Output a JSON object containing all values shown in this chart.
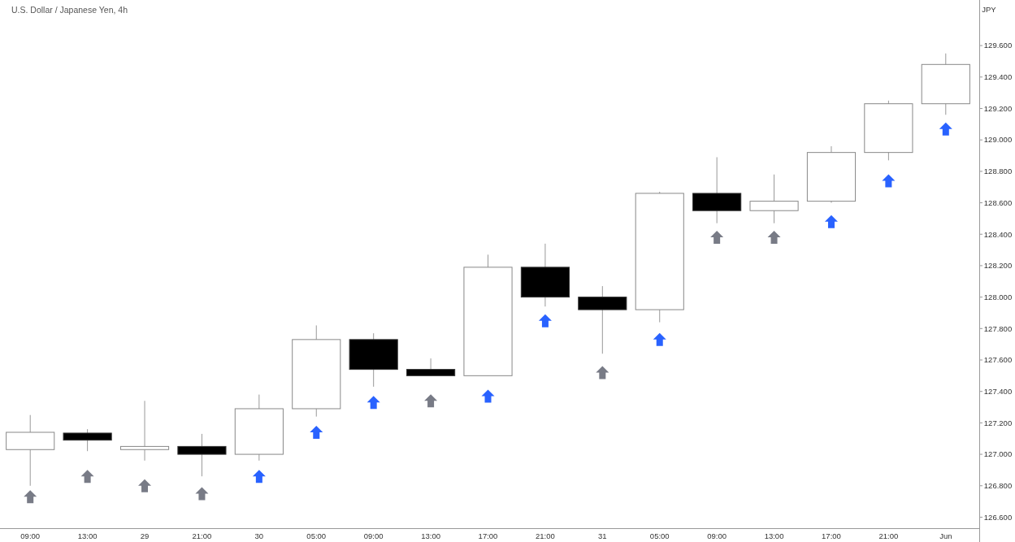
{
  "chart_data": {
    "type": "candlestick",
    "title": "U.S. Dollar / Japanese Yen, 4h",
    "ylabel": "JPY",
    "categories": [
      "09:00",
      "13:00",
      "29",
      "21:00",
      "30",
      "05:00",
      "09:00",
      "13:00",
      "17:00",
      "21:00",
      "31",
      "05:00",
      "09:00",
      "13:00",
      "17:00",
      "21:00",
      "Jun"
    ],
    "ohlc": [
      [
        127.03,
        127.25,
        126.8,
        127.14
      ],
      [
        127.135,
        127.16,
        127.02,
        127.09
      ],
      [
        127.03,
        127.34,
        126.96,
        127.05
      ],
      [
        127.05,
        127.13,
        126.86,
        127.0
      ],
      [
        127.0,
        127.38,
        126.96,
        127.29
      ],
      [
        127.29,
        127.82,
        127.24,
        127.73
      ],
      [
        127.73,
        127.77,
        127.43,
        127.54
      ],
      [
        127.54,
        127.61,
        127.5,
        127.5
      ],
      [
        127.5,
        128.27,
        127.5,
        128.19
      ],
      [
        128.19,
        128.34,
        127.94,
        128.0
      ],
      [
        128.0,
        128.07,
        127.64,
        127.92
      ],
      [
        127.92,
        128.67,
        127.84,
        128.66
      ],
      [
        128.66,
        128.89,
        128.47,
        128.55
      ],
      [
        128.55,
        128.78,
        128.47,
        128.61
      ],
      [
        128.61,
        128.96,
        128.6,
        128.92
      ],
      [
        128.92,
        129.25,
        128.87,
        129.23
      ],
      [
        129.23,
        129.55,
        129.16,
        129.48
      ]
    ],
    "series": [
      {
        "type": "scatter",
        "marker": "triangle",
        "values": [
          126.73,
          126.86,
          126.8,
          126.75,
          126.86,
          127.14,
          127.33,
          127.34,
          127.37,
          127.85,
          127.52,
          127.73,
          128.38,
          128.38,
          128.48,
          128.74,
          129.07
        ],
        "colors": [
          "#787b86",
          "#787b86",
          "#787b86",
          "#787b86",
          "#2962ff",
          "#2962ff",
          "#2962ff",
          "#787b86",
          "#2962ff",
          "#2962ff",
          "#787b86",
          "#2962ff",
          "#787b86",
          "#787b86",
          "#2962ff",
          "#2962ff",
          "#2962ff"
        ]
      }
    ],
    "ylim": [
      126.53,
      129.89
    ],
    "yticks": [
      {
        "value": 126.6,
        "label": "126.600"
      },
      {
        "value": 126.8,
        "label": "126.800"
      },
      {
        "value": 127.0,
        "label": "127.000"
      },
      {
        "value": 127.2,
        "label": "127.200"
      },
      {
        "value": 127.4,
        "label": "127.400"
      },
      {
        "value": 127.6,
        "label": "127.600"
      },
      {
        "value": 127.8,
        "label": "127.800"
      },
      {
        "value": 128.0,
        "label": "128.000"
      },
      {
        "value": 128.2,
        "label": "128.200"
      },
      {
        "value": 128.4,
        "label": "128.400"
      },
      {
        "value": 128.6,
        "label": "128.600"
      },
      {
        "value": 128.8,
        "label": "128.800"
      },
      {
        "value": 129.0,
        "label": "129.000"
      },
      {
        "value": 129.2,
        "label": "129.200"
      },
      {
        "value": 129.4,
        "label": "129.400"
      },
      {
        "value": 129.6,
        "label": "129.600"
      }
    ],
    "tick_labels": "xy"
  }
}
